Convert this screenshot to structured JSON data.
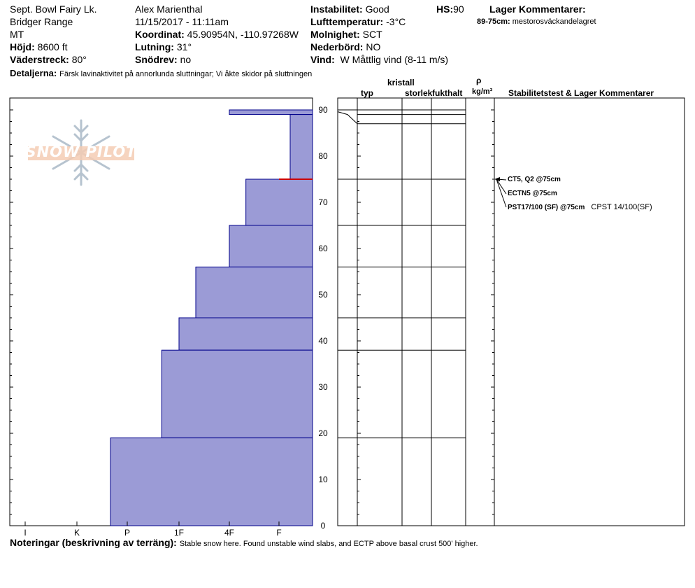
{
  "header": {
    "location": "Sept. Bowl Fairy Lk.",
    "range": "Bridger Range",
    "state": "MT",
    "elevation_label": "Höjd:",
    "elevation_value": "8600 ft",
    "aspect_label": "Väderstreck:",
    "aspect_value": "80°",
    "details_label": "Detaljerna:",
    "details_value": "Färsk lavinaktivitet på annorlunda sluttningar; Vi åkte skidor på sluttningen",
    "observer": "Alex Marienthal",
    "datetime": "11/15/2017 - 11:11am",
    "coord_label": "Koordinat:",
    "coord_value": "45.90954N, -110.97268W",
    "slope_label": "Lutning:",
    "slope_value": "31°",
    "drift_label": "Snödrev:",
    "drift_value": "no",
    "stability_label": "Instabilitet:",
    "stability_value": "Good",
    "airtemp_label": "Lufttemperatur:",
    "airtemp_value": "-3°C",
    "cloud_label": "Molnighet:",
    "cloud_value": "SCT",
    "precip_label": "Nederbörd:",
    "precip_value": "NO",
    "wind_label": "Vind:",
    "wind_value": "W Måttlig vind (8-11 m/s)",
    "hs_label": "HS:",
    "hs_value": "90",
    "layer_comments_title": "Lager Kommentarer:",
    "layer_comment_range": "89-75cm:",
    "layer_comment_text": "mestorosväckandelagret"
  },
  "logo": {
    "text": "SNOW PILOT"
  },
  "columns": {
    "kristall": "kristall",
    "typ": "typ",
    "storlek": "storlek",
    "fukthalt": "fukthalt",
    "rho": "ρ",
    "density_unit": "kg/m³",
    "stability": "Stabilitetstest & Lager Kommentarer"
  },
  "tests": [
    {
      "label": "CT5, Q2 @75cm",
      "depth": 75
    },
    {
      "label": "ECTN5 @75cm",
      "depth": 75
    },
    {
      "label": "PST17/100 (SF) @75cm",
      "depth": 75,
      "extra": "CPST 14/100(SF)"
    }
  ],
  "notes": {
    "label": "Noteringar (beskrivning av terräng):",
    "text": "Stable snow here. Found unstable wind slabs, and ECTP above basal crust 500' higher."
  },
  "chart_data": {
    "type": "bar",
    "title": "",
    "xlabel": "",
    "ylabel": "",
    "y_ticks": [
      0,
      10,
      20,
      30,
      40,
      50,
      60,
      70,
      80,
      90
    ],
    "ylim": [
      0,
      92.5
    ],
    "hardness_ticks": [
      "I",
      "K",
      "P",
      "1F",
      "4F",
      "F"
    ],
    "layers": [
      {
        "top": 90,
        "bottom": 89,
        "hardness": "4F"
      },
      {
        "top": 89,
        "bottom": 75,
        "hardness": "F+"
      },
      {
        "top": 75,
        "bottom": 65,
        "hardness": "4F+"
      },
      {
        "top": 65,
        "bottom": 56,
        "hardness": "4F"
      },
      {
        "top": 56,
        "bottom": 45,
        "hardness": "1F+"
      },
      {
        "top": 45,
        "bottom": 38,
        "hardness": "1F"
      },
      {
        "top": 38,
        "bottom": 19,
        "hardness": "1F-"
      },
      {
        "top": 19,
        "bottom": 0,
        "hardness": "P-"
      }
    ],
    "weak_layer_depth": 75,
    "colors": {
      "fill": "#9b9bd6",
      "stroke": "#00008b",
      "weak_layer": "#cc0000"
    }
  }
}
